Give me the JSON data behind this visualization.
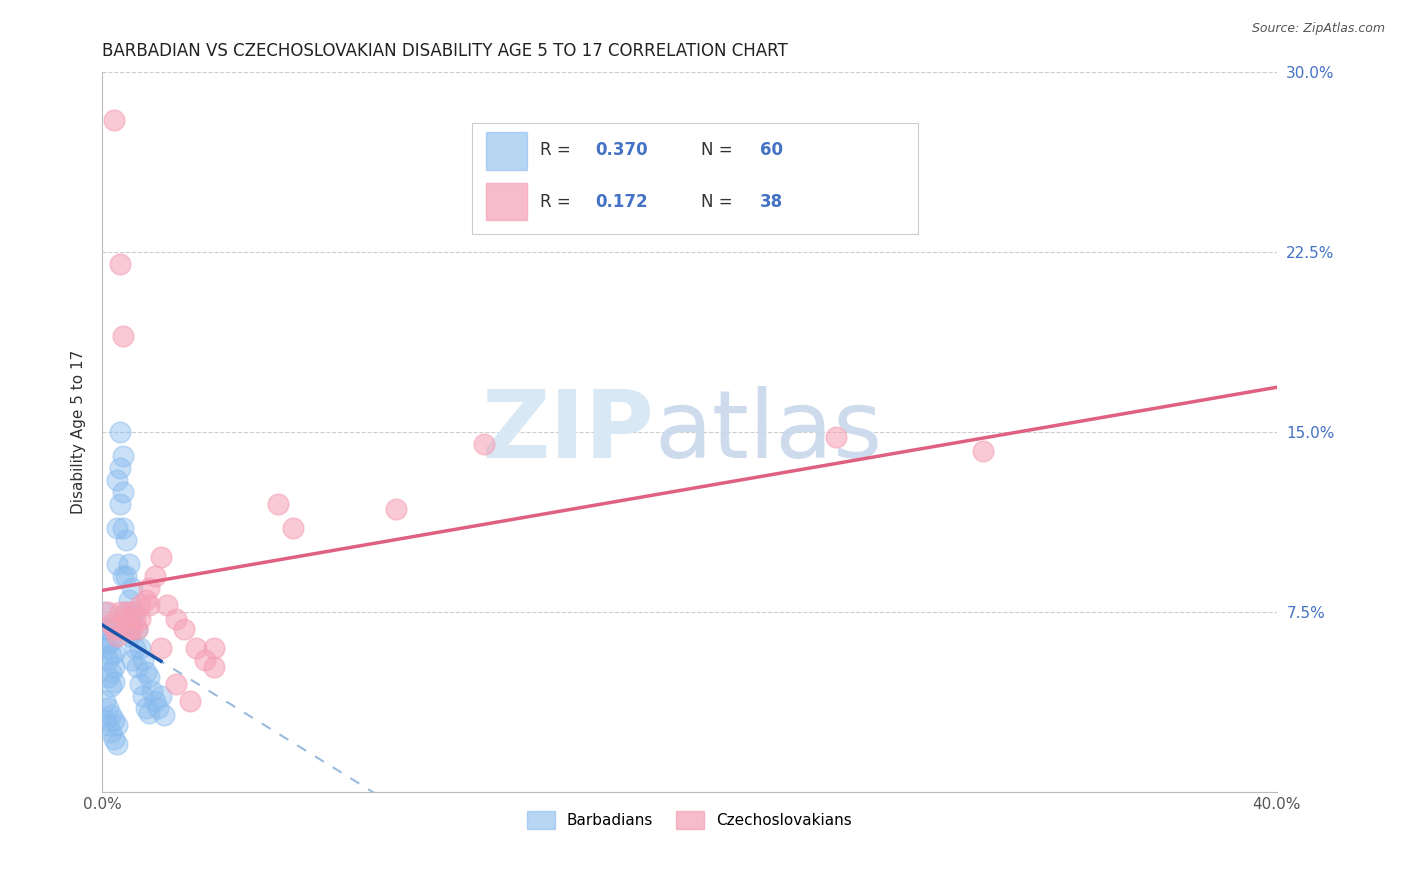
{
  "title": "BARBADIAN VS CZECHOSLOVAKIAN DISABILITY AGE 5 TO 17 CORRELATION CHART",
  "source": "Source: ZipAtlas.com",
  "ylabel": "Disability Age 5 to 17",
  "xlim": [
    0.0,
    0.4
  ],
  "ylim": [
    0.0,
    0.3
  ],
  "xticks": [
    0.0,
    0.1,
    0.2,
    0.3,
    0.4
  ],
  "xtick_labels": [
    "0.0%",
    "",
    "",
    "",
    "40.0%"
  ],
  "yticks": [
    0.0,
    0.075,
    0.15,
    0.225,
    0.3
  ],
  "ytick_labels": [
    "",
    "7.5%",
    "15.0%",
    "22.5%",
    "30.0%"
  ],
  "barbadian_color": "#88bbee",
  "czechoslovakian_color": "#f5a0b5",
  "trend_blue_color": "#1a55aa",
  "trend_pink_color": "#e06080",
  "trend_dashed_color": "#99bbdd",
  "legend_text_color": "#4472c4",
  "watermark_color1": "#d8e8f5",
  "watermark_color2": "#c8d8ec",
  "barbadians_x": [
    0.001,
    0.001,
    0.001,
    0.002,
    0.002,
    0.002,
    0.002,
    0.003,
    0.003,
    0.003,
    0.003,
    0.004,
    0.004,
    0.004,
    0.005,
    0.005,
    0.005,
    0.006,
    0.006,
    0.006,
    0.007,
    0.007,
    0.007,
    0.007,
    0.008,
    0.008,
    0.008,
    0.009,
    0.009,
    0.009,
    0.01,
    0.01,
    0.01,
    0.011,
    0.011,
    0.012,
    0.012,
    0.013,
    0.013,
    0.014,
    0.014,
    0.015,
    0.015,
    0.016,
    0.016,
    0.017,
    0.018,
    0.019,
    0.02,
    0.021,
    0.001,
    0.001,
    0.002,
    0.002,
    0.003,
    0.003,
    0.004,
    0.004,
    0.005,
    0.005
  ],
  "barbadians_y": [
    0.075,
    0.068,
    0.06,
    0.068,
    0.062,
    0.055,
    0.048,
    0.063,
    0.057,
    0.05,
    0.044,
    0.058,
    0.052,
    0.046,
    0.13,
    0.11,
    0.095,
    0.15,
    0.135,
    0.12,
    0.14,
    0.125,
    0.11,
    0.09,
    0.105,
    0.09,
    0.075,
    0.095,
    0.08,
    0.065,
    0.085,
    0.07,
    0.055,
    0.075,
    0.06,
    0.068,
    0.052,
    0.06,
    0.045,
    0.055,
    0.04,
    0.05,
    0.035,
    0.048,
    0.033,
    0.042,
    0.038,
    0.035,
    0.04,
    0.032,
    0.038,
    0.03,
    0.035,
    0.028,
    0.032,
    0.025,
    0.03,
    0.022,
    0.028,
    0.02
  ],
  "czechoslovakians_x": [
    0.002,
    0.003,
    0.004,
    0.005,
    0.006,
    0.007,
    0.008,
    0.009,
    0.01,
    0.011,
    0.012,
    0.013,
    0.015,
    0.016,
    0.018,
    0.02,
    0.022,
    0.025,
    0.028,
    0.032,
    0.038,
    0.038,
    0.06,
    0.065,
    0.1,
    0.13,
    0.25,
    0.3,
    0.004,
    0.006,
    0.008,
    0.01,
    0.013,
    0.016,
    0.02,
    0.025,
    0.03,
    0.035
  ],
  "czechoslovakians_y": [
    0.075,
    0.07,
    0.28,
    0.065,
    0.22,
    0.19,
    0.075,
    0.068,
    0.075,
    0.072,
    0.068,
    0.078,
    0.08,
    0.085,
    0.09,
    0.098,
    0.078,
    0.072,
    0.068,
    0.06,
    0.052,
    0.06,
    0.12,
    0.11,
    0.118,
    0.145,
    0.148,
    0.142,
    0.068,
    0.075,
    0.072,
    0.068,
    0.072,
    0.078,
    0.06,
    0.045,
    0.038,
    0.055
  ]
}
